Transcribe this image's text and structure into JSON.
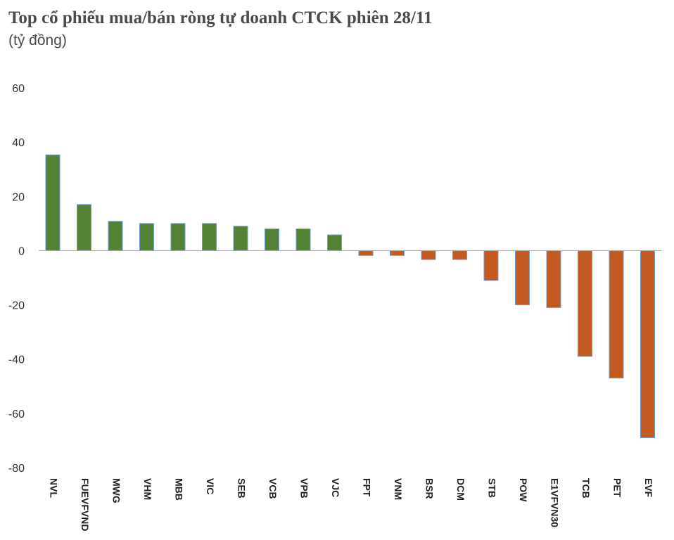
{
  "title": "Top cổ phiếu mua/bán ròng tự doanh CTCK phiên 28/11",
  "subtitle": "(tỷ đồng)",
  "chart_data": {
    "type": "bar",
    "title": "Top cổ phiếu mua/bán ròng tự doanh CTCK phiên 28/11",
    "ylabel": "(tỷ đồng)",
    "xlabel": "",
    "categories": [
      "NVL",
      "FUEVFVND",
      "MWG",
      "VHM",
      "MBB",
      "VIC",
      "SEB",
      "VCB",
      "VPB",
      "VJC",
      "FPT",
      "VNM",
      "BSR",
      "DCM",
      "STB",
      "POW",
      "E1VFVN30",
      "TCB",
      "PET",
      "EVF"
    ],
    "values": [
      35.3,
      17.0,
      10.8,
      10.0,
      10.0,
      10.0,
      9.0,
      8.0,
      8.0,
      5.8,
      -1.8,
      -1.8,
      -3.3,
      -3.3,
      -11.0,
      -20.0,
      -21.0,
      -39.0,
      -47.0,
      -69.0
    ],
    "yticks": [
      60,
      40,
      20,
      0,
      -20,
      -40,
      -60,
      -80
    ],
    "ylim": [
      -80,
      60
    ],
    "colors": {
      "positive": "#548235",
      "negative": "#c55a1e",
      "bar_edge": "#6f9fd8",
      "axis": "#aaaaaa"
    },
    "grid": false,
    "legend": "none"
  }
}
